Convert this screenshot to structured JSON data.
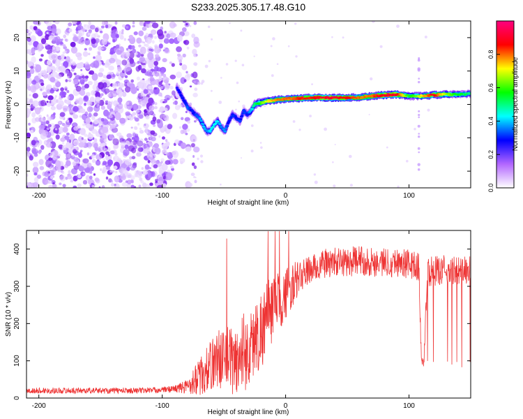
{
  "figure": {
    "title": "S233.2025.305.17.48.G10"
  },
  "chart_data": [
    {
      "type": "heatmap",
      "panel": "spectrogram",
      "xlabel": "Height of straight line (km)",
      "ylabel": "Frequency (Hz)",
      "xlim": [
        -210,
        150
      ],
      "ylim": [
        -25,
        25
      ],
      "xticks": [
        -200,
        -100,
        0,
        100
      ],
      "yticks": [
        -20,
        -10,
        0,
        10,
        20
      ],
      "colorbar": {
        "label": "Normalized spectral amplitude",
        "range": [
          0,
          1
        ],
        "ticks": [
          "0.0",
          "0.2",
          "0.4",
          "0.6",
          "0.8"
        ],
        "colors": [
          "#ffffff",
          "#b266ff",
          "#0000ff",
          "#00ffff",
          "#00ff00",
          "#ffff00",
          "#ff0000",
          "#ff0080"
        ]
      },
      "noise_region": {
        "x_range": [
          -210,
          -80
        ],
        "freq_range": [
          -25,
          25
        ],
        "typical_amplitude": 0.15
      },
      "signal_track": {
        "x": [
          -88,
          -85,
          -82,
          -79,
          -76,
          -73,
          -70,
          -67,
          -64,
          -61,
          -58,
          -55,
          -52,
          -49,
          -46,
          -43,
          -40,
          -37,
          -34,
          -31,
          -28,
          -25,
          -20,
          -15,
          -10,
          -5,
          0,
          5,
          10,
          20,
          30,
          40,
          50,
          60,
          70,
          80,
          90,
          100,
          110,
          120,
          130,
          140,
          150
        ],
        "freq": [
          5,
          3,
          1,
          -1,
          -2,
          -3,
          -4,
          -6,
          -8,
          -8,
          -6,
          -5,
          -7,
          -8,
          -5,
          -3,
          -4,
          -5,
          -2,
          -3,
          -2,
          0,
          0.5,
          1,
          1.2,
          1.5,
          1.6,
          1.8,
          1.8,
          2,
          2,
          2,
          2,
          2.1,
          2.5,
          2.8,
          3,
          2.5,
          2.5,
          2.8,
          3,
          3,
          3.2
        ],
        "amplitude": [
          0.25,
          0.3,
          0.3,
          0.35,
          0.3,
          0.3,
          0.35,
          0.4,
          0.35,
          0.4,
          0.45,
          0.4,
          0.35,
          0.35,
          0.3,
          0.3,
          0.3,
          0.3,
          0.3,
          0.3,
          0.4,
          0.5,
          0.6,
          0.7,
          0.75,
          0.8,
          0.8,
          0.8,
          0.85,
          0.85,
          0.9,
          0.9,
          0.85,
          0.8,
          0.8,
          0.9,
          0.9,
          0.55,
          0.7,
          0.9,
          0.65,
          0.55,
          0.5
        ]
      }
    },
    {
      "type": "line",
      "panel": "snr",
      "xlabel": "Height of straight line (km)",
      "ylabel": "SNR (10 * v/v)",
      "xlim": [
        -210,
        150
      ],
      "ylim": [
        0,
        450
      ],
      "xticks": [
        -200,
        -100,
        0,
        100
      ],
      "yticks": [
        0,
        100,
        200,
        300,
        400
      ],
      "series": [
        {
          "name": "SNR",
          "color": "#ee3333",
          "x": [
            -210,
            -200,
            -180,
            -160,
            -140,
            -120,
            -100,
            -90,
            -80,
            -75,
            -70,
            -65,
            -60,
            -55,
            -50,
            -45,
            -40,
            -35,
            -30,
            -25,
            -20,
            -15,
            -10,
            -5,
            0,
            5,
            10,
            15,
            20,
            25,
            30,
            40,
            50,
            60,
            70,
            80,
            90,
            100,
            105,
            108,
            110,
            112,
            115,
            120,
            130,
            140,
            150
          ],
          "y": [
            18,
            20,
            20,
            20,
            20,
            20,
            22,
            25,
            30,
            45,
            55,
            70,
            90,
            110,
            100,
            110,
            90,
            130,
            120,
            160,
            180,
            220,
            240,
            260,
            280,
            300,
            320,
            335,
            345,
            350,
            360,
            365,
            365,
            370,
            365,
            365,
            365,
            360,
            355,
            350,
            100,
            95,
            340,
            340,
            345,
            340,
            345
          ],
          "noise_amplitude": [
            8,
            8,
            8,
            8,
            8,
            8,
            8,
            10,
            20,
            35,
            50,
            60,
            70,
            80,
            90,
            90,
            100,
            110,
            100,
            100,
            110,
            100,
            90,
            80,
            70,
            60,
            50,
            40,
            40,
            40,
            40,
            40,
            40,
            40,
            40,
            40,
            40,
            40,
            40,
            40,
            20,
            20,
            40,
            40,
            40,
            40,
            40
          ]
        }
      ]
    }
  ]
}
